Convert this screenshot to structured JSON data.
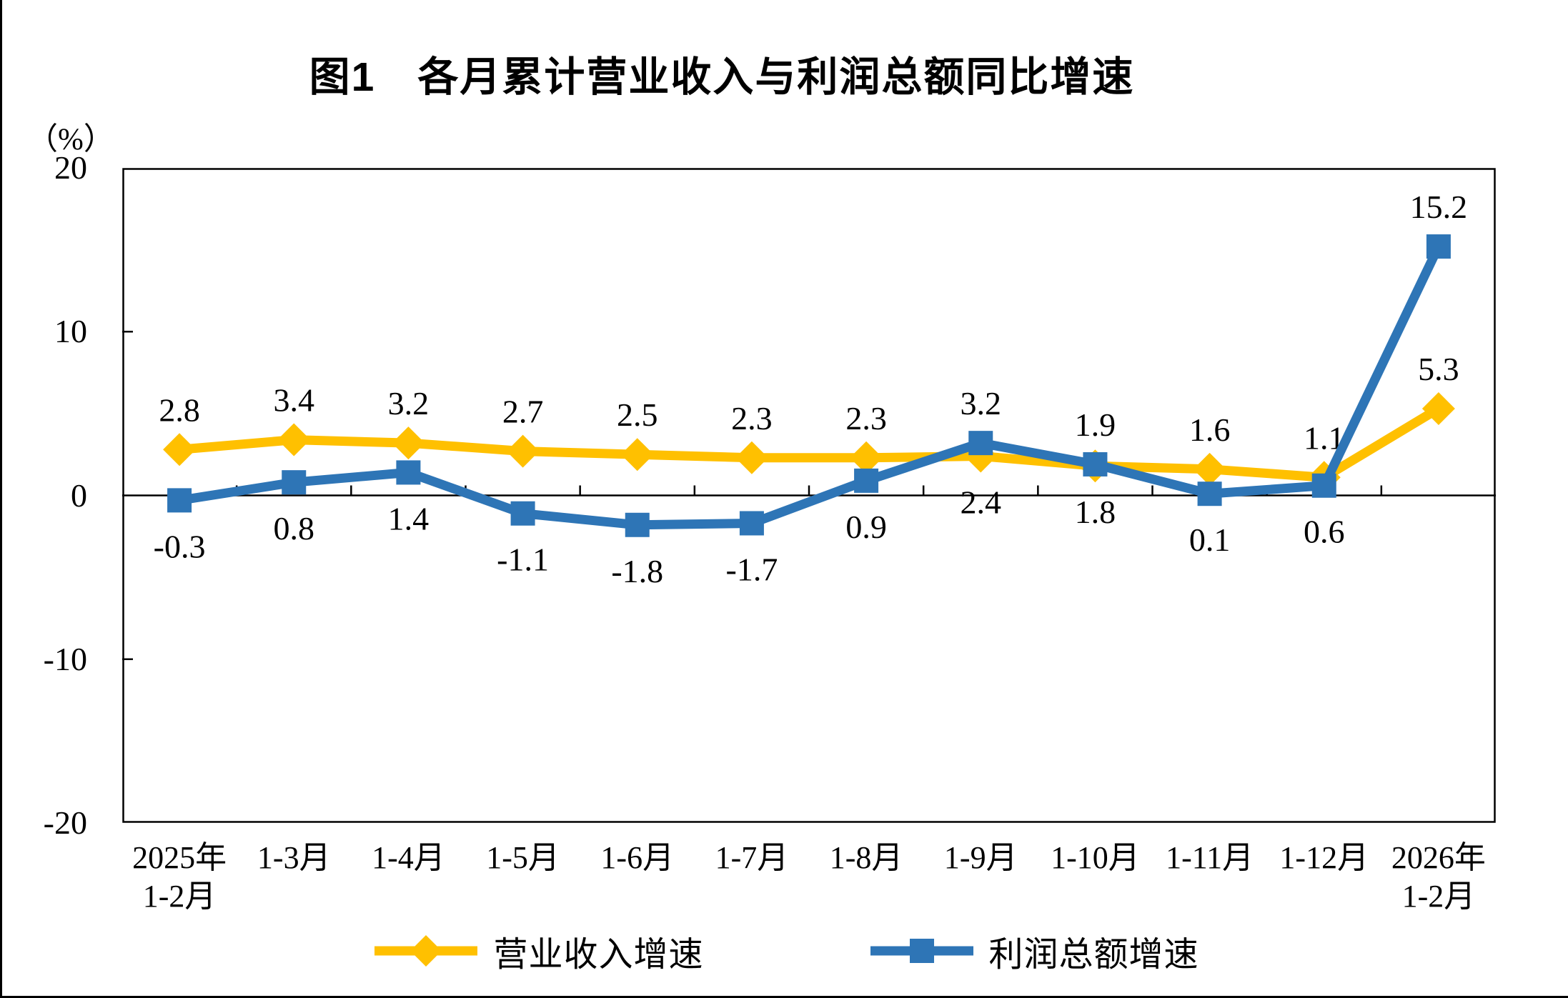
{
  "figure": {
    "title": "图1　各月累计营业收入与利润总额同比增速",
    "y_axis_unit": "（%）"
  },
  "chart_data": {
    "type": "line",
    "title": "图1　各月累计营业收入与利润总额同比增速",
    "xlabel": "",
    "ylabel": "（%）",
    "ylim": [
      -20,
      20
    ],
    "yticks": [
      20,
      10,
      0,
      -10,
      -20
    ],
    "grid": false,
    "legend_position": "bottom",
    "categories": [
      [
        "2025年",
        "1-2月"
      ],
      [
        "1-3月"
      ],
      [
        "1-4月"
      ],
      [
        "1-5月"
      ],
      [
        "1-6月"
      ],
      [
        "1-7月"
      ],
      [
        "1-8月"
      ],
      [
        "1-9月"
      ],
      [
        "1-10月"
      ],
      [
        "1-11月"
      ],
      [
        "1-12月"
      ],
      [
        "2026年",
        "1-2月"
      ]
    ],
    "series": [
      {
        "name": "营业收入增速",
        "color": "#FFC000",
        "marker": "diamond",
        "values": [
          2.8,
          3.4,
          3.2,
          2.7,
          2.5,
          2.3,
          2.3,
          2.4,
          1.8,
          1.6,
          1.1,
          5.3
        ],
        "label_pos": [
          "above",
          "above",
          "above",
          "above",
          "above",
          "above",
          "above",
          "below",
          "below",
          "above",
          "above",
          "above"
        ]
      },
      {
        "name": "利润总额增速",
        "color": "#2E75B6",
        "marker": "square",
        "values": [
          -0.3,
          0.8,
          1.4,
          -1.1,
          -1.8,
          -1.7,
          0.9,
          3.2,
          1.9,
          0.1,
          0.6,
          15.2
        ],
        "label_pos": [
          "below",
          "below",
          "below",
          "below",
          "below",
          "below",
          "below",
          "above",
          "above",
          "below",
          "below",
          "above"
        ]
      }
    ]
  }
}
